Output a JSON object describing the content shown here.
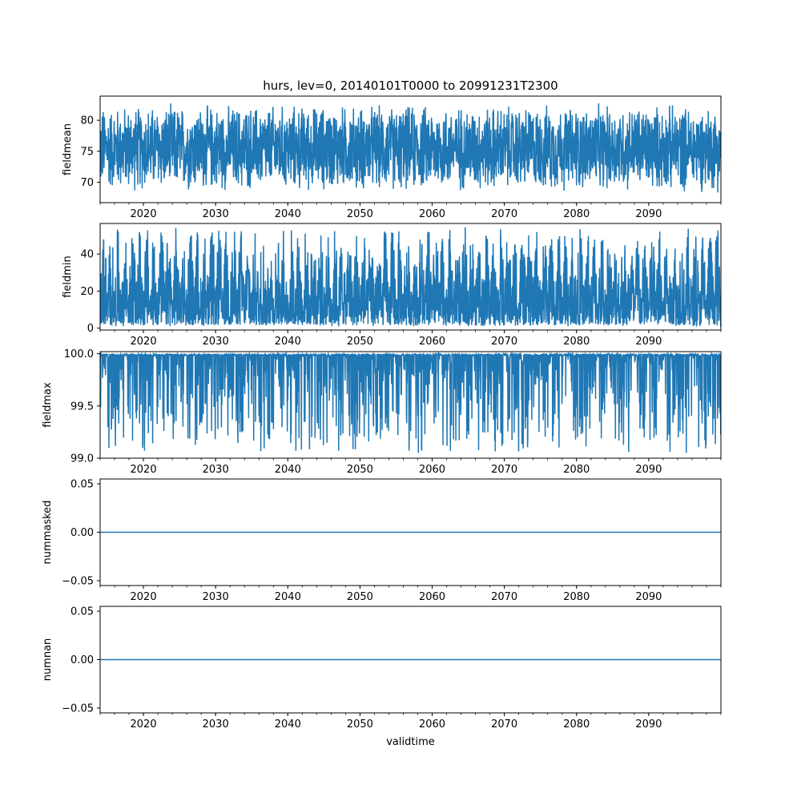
{
  "figure": {
    "title": "hurs, lev=0, 20140101T0000 to 20991231T2300",
    "xlabel": "validtime",
    "series_color": "#1f77b4"
  },
  "chart_data": [
    {
      "type": "line",
      "ylabel": "fieldmean",
      "xlim": [
        2014.0,
        2100.0
      ],
      "ylim": [
        66.7,
        83.9
      ],
      "yticks": [
        70,
        75,
        80
      ],
      "ytick_labels": [
        "70",
        "75",
        "80"
      ],
      "xticks": [
        2020,
        2030,
        2040,
        2050,
        2060,
        2070,
        2080,
        2090
      ],
      "xtick_labels": [
        "2020",
        "2030",
        "2040",
        "2050",
        "2060",
        "2070",
        "2080",
        "2090"
      ],
      "series": [
        {
          "x_range": [
            2014.0,
            2100.0
          ],
          "y_band": [
            68.0,
            83.0
          ],
          "kind": "dense-noise"
        }
      ]
    },
    {
      "type": "line",
      "ylabel": "fieldmin",
      "xlim": [
        2014.0,
        2100.0
      ],
      "ylim": [
        -1.0,
        56.5
      ],
      "yticks": [
        0,
        20,
        40
      ],
      "ytick_labels": [
        "0",
        "20",
        "40"
      ],
      "xticks": [
        2020,
        2030,
        2040,
        2050,
        2060,
        2070,
        2080,
        2090
      ],
      "xtick_labels": [
        "2020",
        "2030",
        "2040",
        "2050",
        "2060",
        "2070",
        "2080",
        "2090"
      ],
      "series": [
        {
          "x_range": [
            2014.0,
            2100.0
          ],
          "y_band": [
            1.0,
            54.0
          ],
          "kind": "dense-spikes-up"
        }
      ]
    },
    {
      "type": "line",
      "ylabel": "fieldmax",
      "xlim": [
        2014.0,
        2100.0
      ],
      "ylim": [
        99.0,
        100.02
      ],
      "yticks": [
        99.0,
        99.5,
        100.0
      ],
      "ytick_labels": [
        "99.0",
        "99.5",
        "100.0"
      ],
      "xticks": [
        2020,
        2030,
        2040,
        2050,
        2060,
        2070,
        2080,
        2090
      ],
      "xtick_labels": [
        "2020",
        "2030",
        "2040",
        "2050",
        "2060",
        "2070",
        "2080",
        "2090"
      ],
      "series": [
        {
          "x_range": [
            2014.0,
            2100.0
          ],
          "y_band": [
            99.05,
            100.0
          ],
          "kind": "dense-spikes-down"
        }
      ]
    },
    {
      "type": "line",
      "ylabel": "nummasked",
      "xlim": [
        2014.0,
        2100.0
      ],
      "ylim": [
        -0.055,
        0.055
      ],
      "yticks": [
        -0.05,
        0.0,
        0.05
      ],
      "ytick_labels": [
        "−0.05",
        "0.00",
        "0.05"
      ],
      "xticks": [
        2020,
        2030,
        2040,
        2050,
        2060,
        2070,
        2080,
        2090
      ],
      "xtick_labels": [
        "2020",
        "2030",
        "2040",
        "2050",
        "2060",
        "2070",
        "2080",
        "2090"
      ],
      "series": [
        {
          "x": [
            2014.0,
            2100.0
          ],
          "y": [
            0.0,
            0.0
          ],
          "kind": "constant"
        }
      ]
    },
    {
      "type": "line",
      "ylabel": "numnan",
      "xlim": [
        2014.0,
        2100.0
      ],
      "ylim": [
        -0.055,
        0.055
      ],
      "yticks": [
        -0.05,
        0.0,
        0.05
      ],
      "ytick_labels": [
        "−0.05",
        "0.00",
        "0.05"
      ],
      "xticks": [
        2020,
        2030,
        2040,
        2050,
        2060,
        2070,
        2080,
        2090
      ],
      "xtick_labels": [
        "2020",
        "2030",
        "2040",
        "2050",
        "2060",
        "2070",
        "2080",
        "2090"
      ],
      "series": [
        {
          "x": [
            2014.0,
            2100.0
          ],
          "y": [
            0.0,
            0.0
          ],
          "kind": "constant"
        }
      ]
    }
  ]
}
